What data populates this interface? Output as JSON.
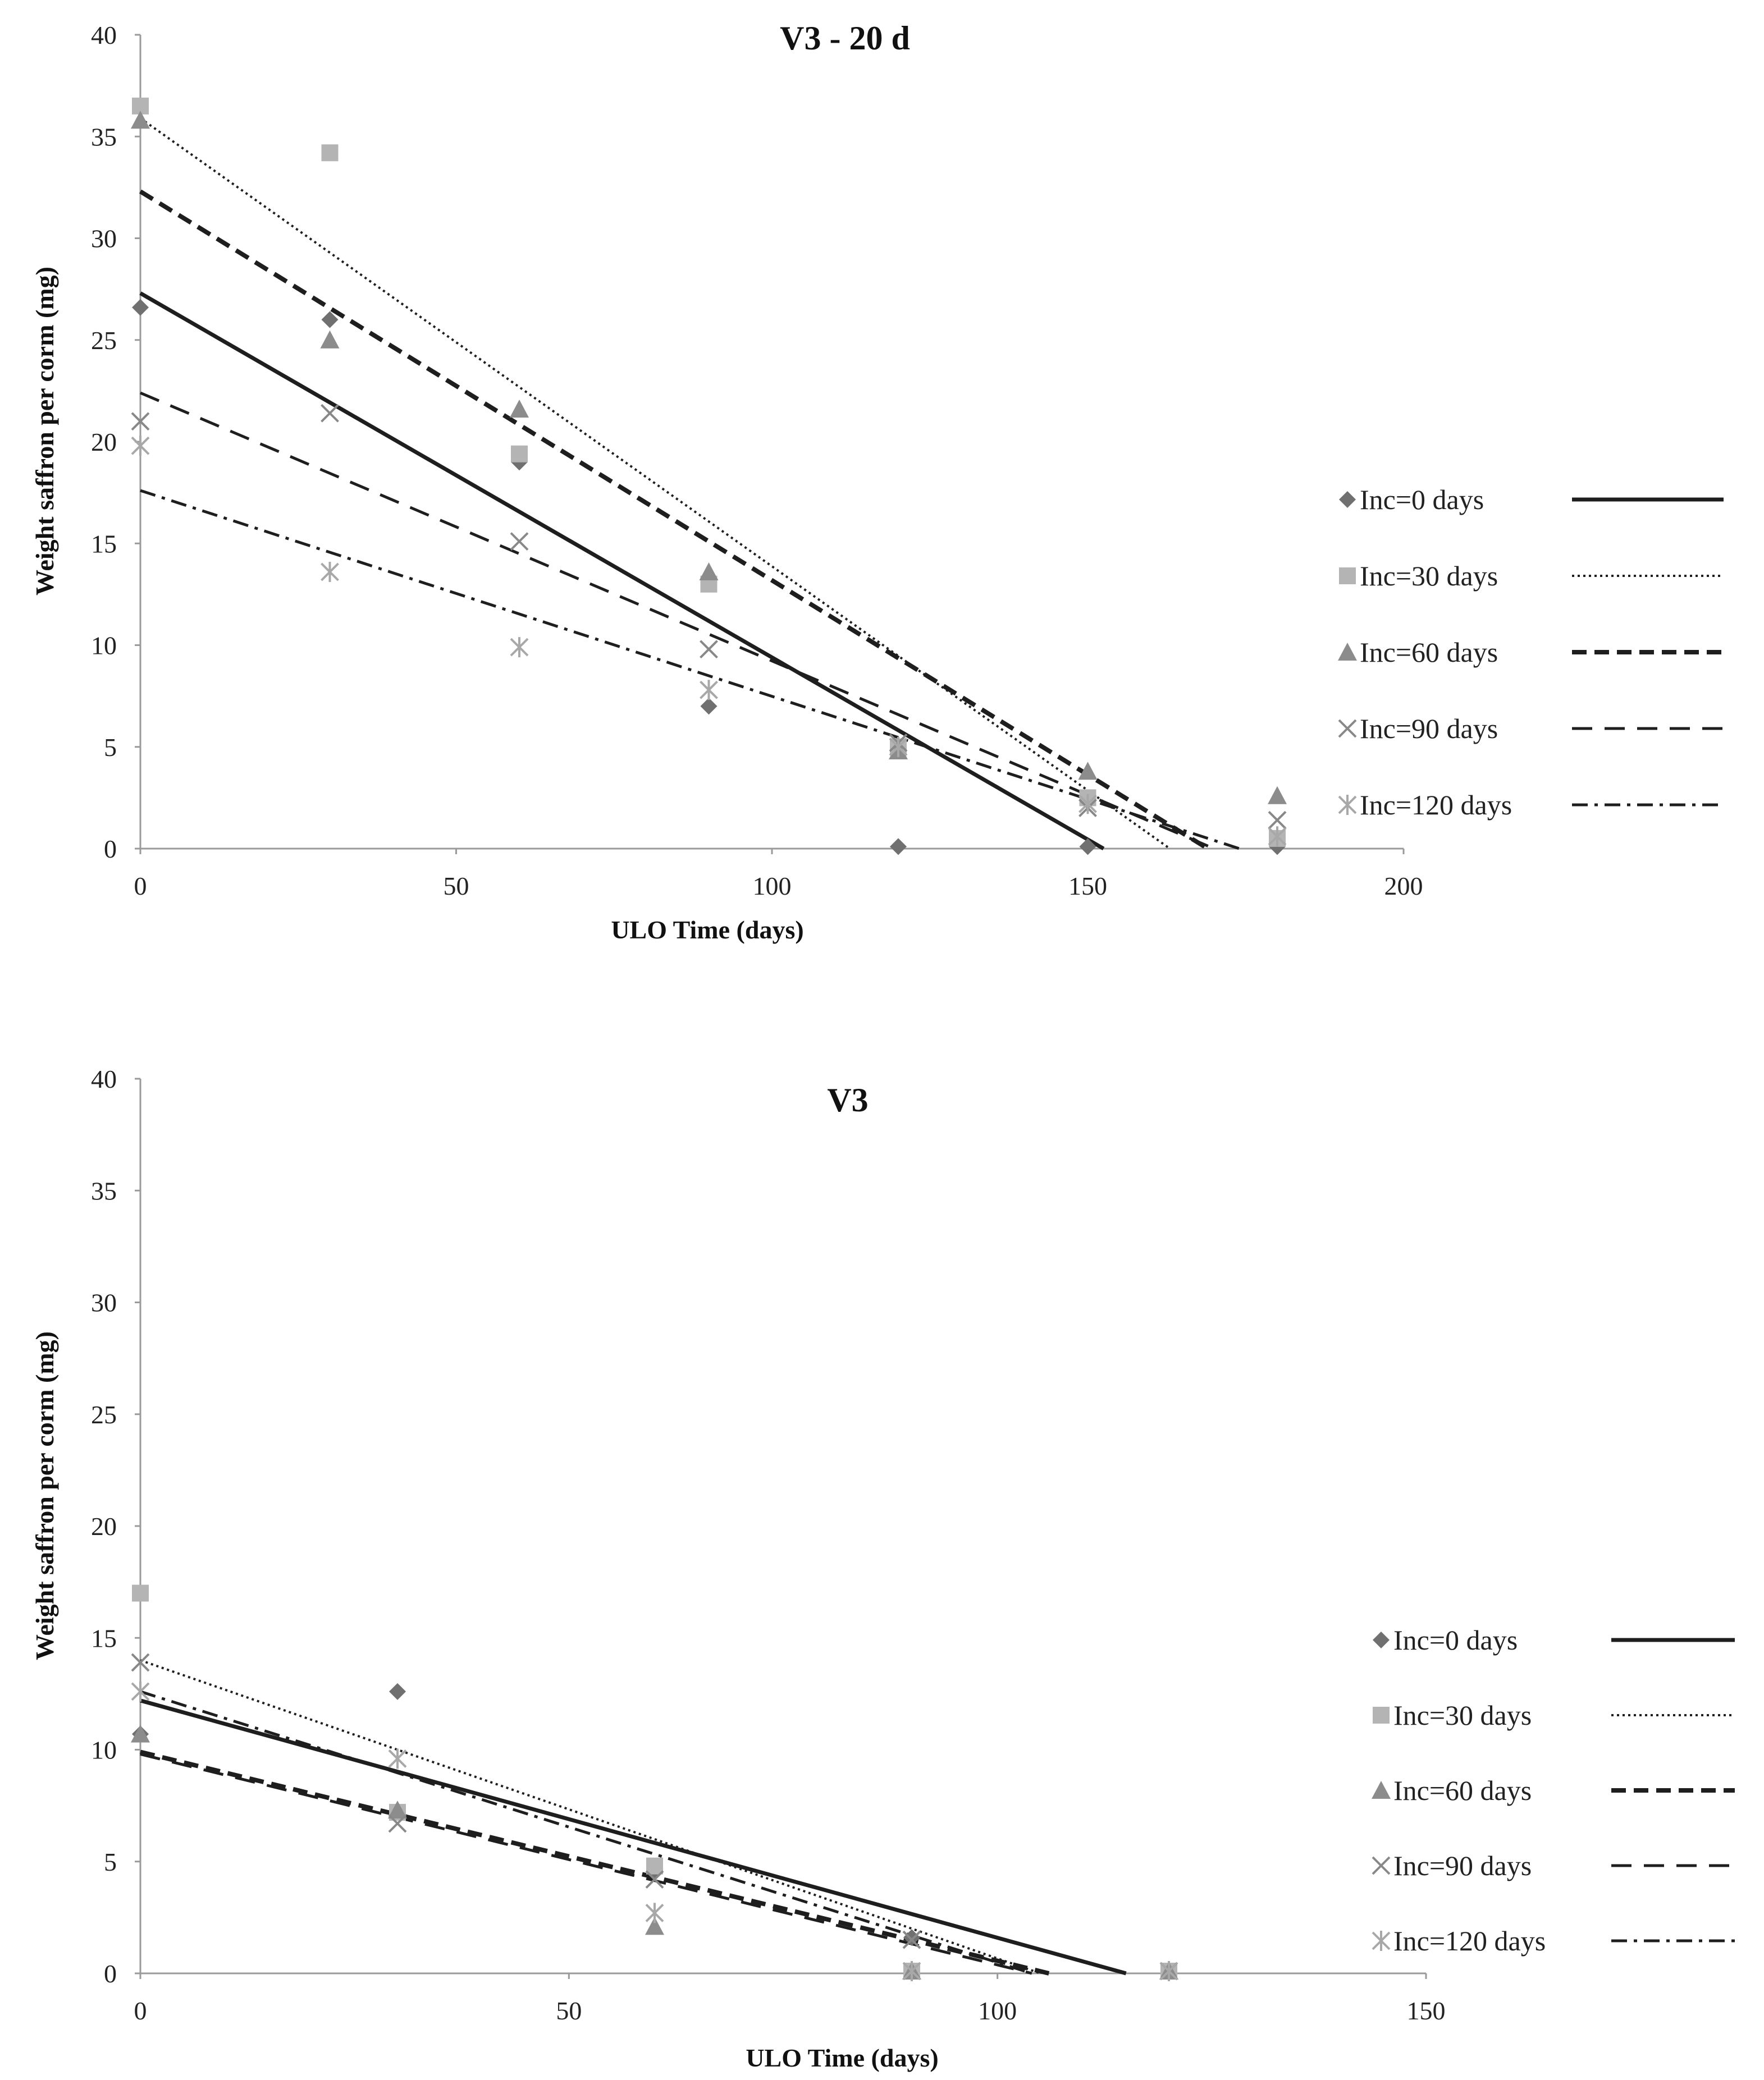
{
  "chart_data": [
    {
      "type": "scatter",
      "title": "V3 - 20 d",
      "xlabel": "ULO Time (days)",
      "ylabel": "Weight saffron per corm (mg)",
      "xlim": [
        0,
        200
      ],
      "ylim": [
        0,
        40
      ],
      "xticks": [
        0,
        50,
        100,
        150,
        200
      ],
      "yticks": [
        0,
        5,
        10,
        15,
        20,
        25,
        30,
        35,
        40
      ],
      "legend_position": "right",
      "series": [
        {
          "name": "Inc=0 days",
          "marker": "diamond",
          "color": "#707070",
          "line": "solid",
          "x": [
            0,
            30,
            60,
            90,
            120,
            150,
            180
          ],
          "y": [
            26.6,
            26.0,
            19.0,
            7.0,
            0.1,
            0.1,
            0.1
          ],
          "trend": [
            [
              0,
              27.3
            ],
            [
              152.5,
              0
            ]
          ]
        },
        {
          "name": "Inc=30 days",
          "marker": "square",
          "color": "#b4b4b4",
          "line": "dotted",
          "x": [
            0,
            30,
            60,
            90,
            120,
            150,
            180
          ],
          "y": [
            36.5,
            34.2,
            19.4,
            13.0,
            5.0,
            2.5,
            0.5
          ],
          "trend": [
            [
              0,
              35.9
            ],
            [
              163,
              0
            ]
          ]
        },
        {
          "name": "Inc=60 days",
          "marker": "triangle",
          "color": "#8c8c8c",
          "line": "dashed-thick",
          "x": [
            0,
            30,
            60,
            90,
            120,
            150,
            180
          ],
          "y": [
            35.8,
            25.0,
            21.6,
            13.6,
            4.8,
            3.8,
            2.6
          ],
          "trend": [
            [
              0,
              32.3
            ],
            [
              169,
              0
            ]
          ]
        },
        {
          "name": "Inc=90 days",
          "marker": "x",
          "color": "#888888",
          "line": "dashed",
          "x": [
            0,
            30,
            60,
            90,
            120,
            150,
            180
          ],
          "y": [
            21.0,
            21.4,
            15.1,
            9.8,
            5.2,
            2.0,
            1.4
          ],
          "trend": [
            [
              0,
              22.4
            ],
            [
              170,
              0
            ]
          ]
        },
        {
          "name": "Inc=120 days",
          "marker": "star",
          "color": "#a8a8a8",
          "line": "dashdot",
          "x": [
            0,
            30,
            60,
            90,
            120,
            150,
            180
          ],
          "y": [
            19.8,
            13.6,
            9.9,
            7.8,
            5.0,
            2.2,
            0.6
          ],
          "trend": [
            [
              0,
              17.6
            ],
            [
              174,
              0
            ]
          ]
        }
      ]
    },
    {
      "type": "scatter",
      "title": "V3",
      "xlabel": "ULO Time (days)",
      "ylabel": "Weight saffron per corm (mg)",
      "xlim": [
        0,
        150
      ],
      "ylim": [
        0,
        40
      ],
      "xticks": [
        0,
        50,
        100,
        150
      ],
      "yticks": [
        0,
        5,
        10,
        15,
        20,
        25,
        30,
        35,
        40
      ],
      "legend_position": "right",
      "series": [
        {
          "name": "Inc=0 days",
          "marker": "diamond",
          "color": "#707070",
          "line": "solid",
          "x": [
            0,
            30,
            60,
            90,
            120
          ],
          "y": [
            10.7,
            12.6,
            4.6,
            1.6,
            0.1
          ],
          "trend": [
            [
              0,
              12.2
            ],
            [
              115,
              0
            ]
          ]
        },
        {
          "name": "Inc=30 days",
          "marker": "square",
          "color": "#b4b4b4",
          "line": "dotted",
          "x": [
            0,
            30,
            60,
            90,
            120
          ],
          "y": [
            17.0,
            7.2,
            4.8,
            0.1,
            0.1
          ],
          "trend": [
            [
              0,
              14.0
            ],
            [
              105,
              0
            ]
          ]
        },
        {
          "name": "Inc=60 days",
          "marker": "triangle",
          "color": "#8c8c8c",
          "line": "dashed-thick",
          "x": [
            0,
            30,
            60,
            90,
            120
          ],
          "y": [
            10.7,
            7.3,
            2.1,
            0.1,
            0.1
          ],
          "trend": [
            [
              0,
              9.9
            ],
            [
              106,
              0
            ]
          ]
        },
        {
          "name": "Inc=90 days",
          "marker": "x",
          "color": "#888888",
          "line": "dashed",
          "x": [
            0,
            30,
            60,
            90,
            120
          ],
          "y": [
            13.9,
            6.7,
            4.2,
            1.5,
            0.1
          ],
          "trend": [
            [
              0,
              9.8
            ],
            [
              104,
              0
            ]
          ]
        },
        {
          "name": "Inc=120 days",
          "marker": "star",
          "color": "#a8a8a8",
          "line": "dashdot",
          "x": [
            0,
            30,
            60,
            90,
            120
          ],
          "y": [
            12.6,
            9.6,
            2.7,
            0.1,
            0.1
          ],
          "trend": [
            [
              0,
              12.6
            ],
            [
              104,
              0
            ]
          ]
        }
      ]
    }
  ]
}
